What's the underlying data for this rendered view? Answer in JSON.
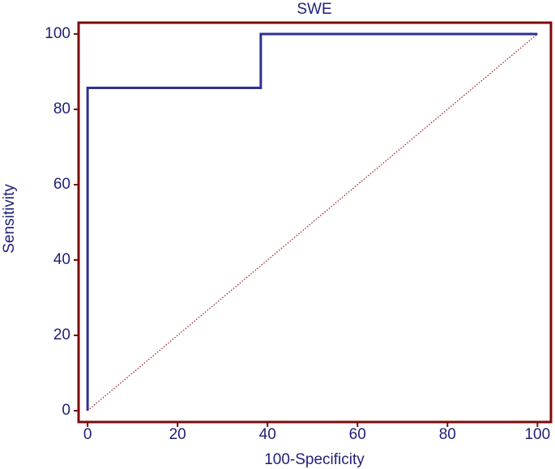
{
  "chart_data": {
    "type": "line",
    "title": "SWE",
    "x_label": "100-Specificity",
    "y_label": "Sensitivity",
    "series": [
      {
        "color": "#2e3192",
        "x": [
          0,
          0,
          38.5,
          38.5,
          100
        ],
        "values": [
          0,
          85.7,
          85.7,
          100,
          100
        ],
        "step": true
      },
      {
        "color": "#9b1c1c",
        "x": [
          0,
          100
        ],
        "values": [
          0,
          100
        ],
        "dash": "dotted"
      }
    ],
    "xlim": [
      -2,
      103
    ],
    "ylim": [
      -3,
      103
    ],
    "xticks": [
      0,
      20,
      40,
      60,
      80,
      100
    ],
    "yticks": [
      0,
      20,
      40,
      60,
      80,
      100
    ],
    "frame_color": "#7b0a0a",
    "grid": false
  }
}
